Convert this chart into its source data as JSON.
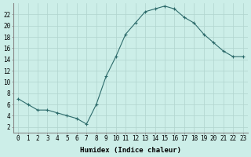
{
  "x": [
    0,
    1,
    2,
    3,
    4,
    5,
    6,
    7,
    8,
    9,
    10,
    11,
    12,
    13,
    14,
    15,
    16,
    17,
    18,
    19,
    20,
    21,
    22,
    23
  ],
  "y": [
    7,
    6,
    5,
    5,
    4.5,
    4,
    3.5,
    2.5,
    6,
    11,
    14.5,
    18.5,
    20.5,
    22.5,
    23,
    23.5,
    23,
    21.5,
    20.5,
    18.5,
    17,
    15.5,
    14.5,
    14.5
  ],
  "line_color": "#2d6b6b",
  "marker": "+",
  "background_color": "#cceee8",
  "grid_color": "#b0d4ce",
  "xlabel": "Humidex (Indice chaleur)",
  "xlim": [
    -0.5,
    23.5
  ],
  "ylim": [
    1,
    24
  ],
  "yticks": [
    2,
    4,
    6,
    8,
    10,
    12,
    14,
    16,
    18,
    20,
    22
  ],
  "xticks": [
    0,
    1,
    2,
    3,
    4,
    5,
    6,
    7,
    8,
    9,
    10,
    11,
    12,
    13,
    14,
    15,
    16,
    17,
    18,
    19,
    20,
    21,
    22,
    23
  ],
  "tick_fontsize": 5.5,
  "xlabel_fontsize": 6.5,
  "line_width": 0.8,
  "marker_size": 3,
  "marker_edge_width": 0.8
}
